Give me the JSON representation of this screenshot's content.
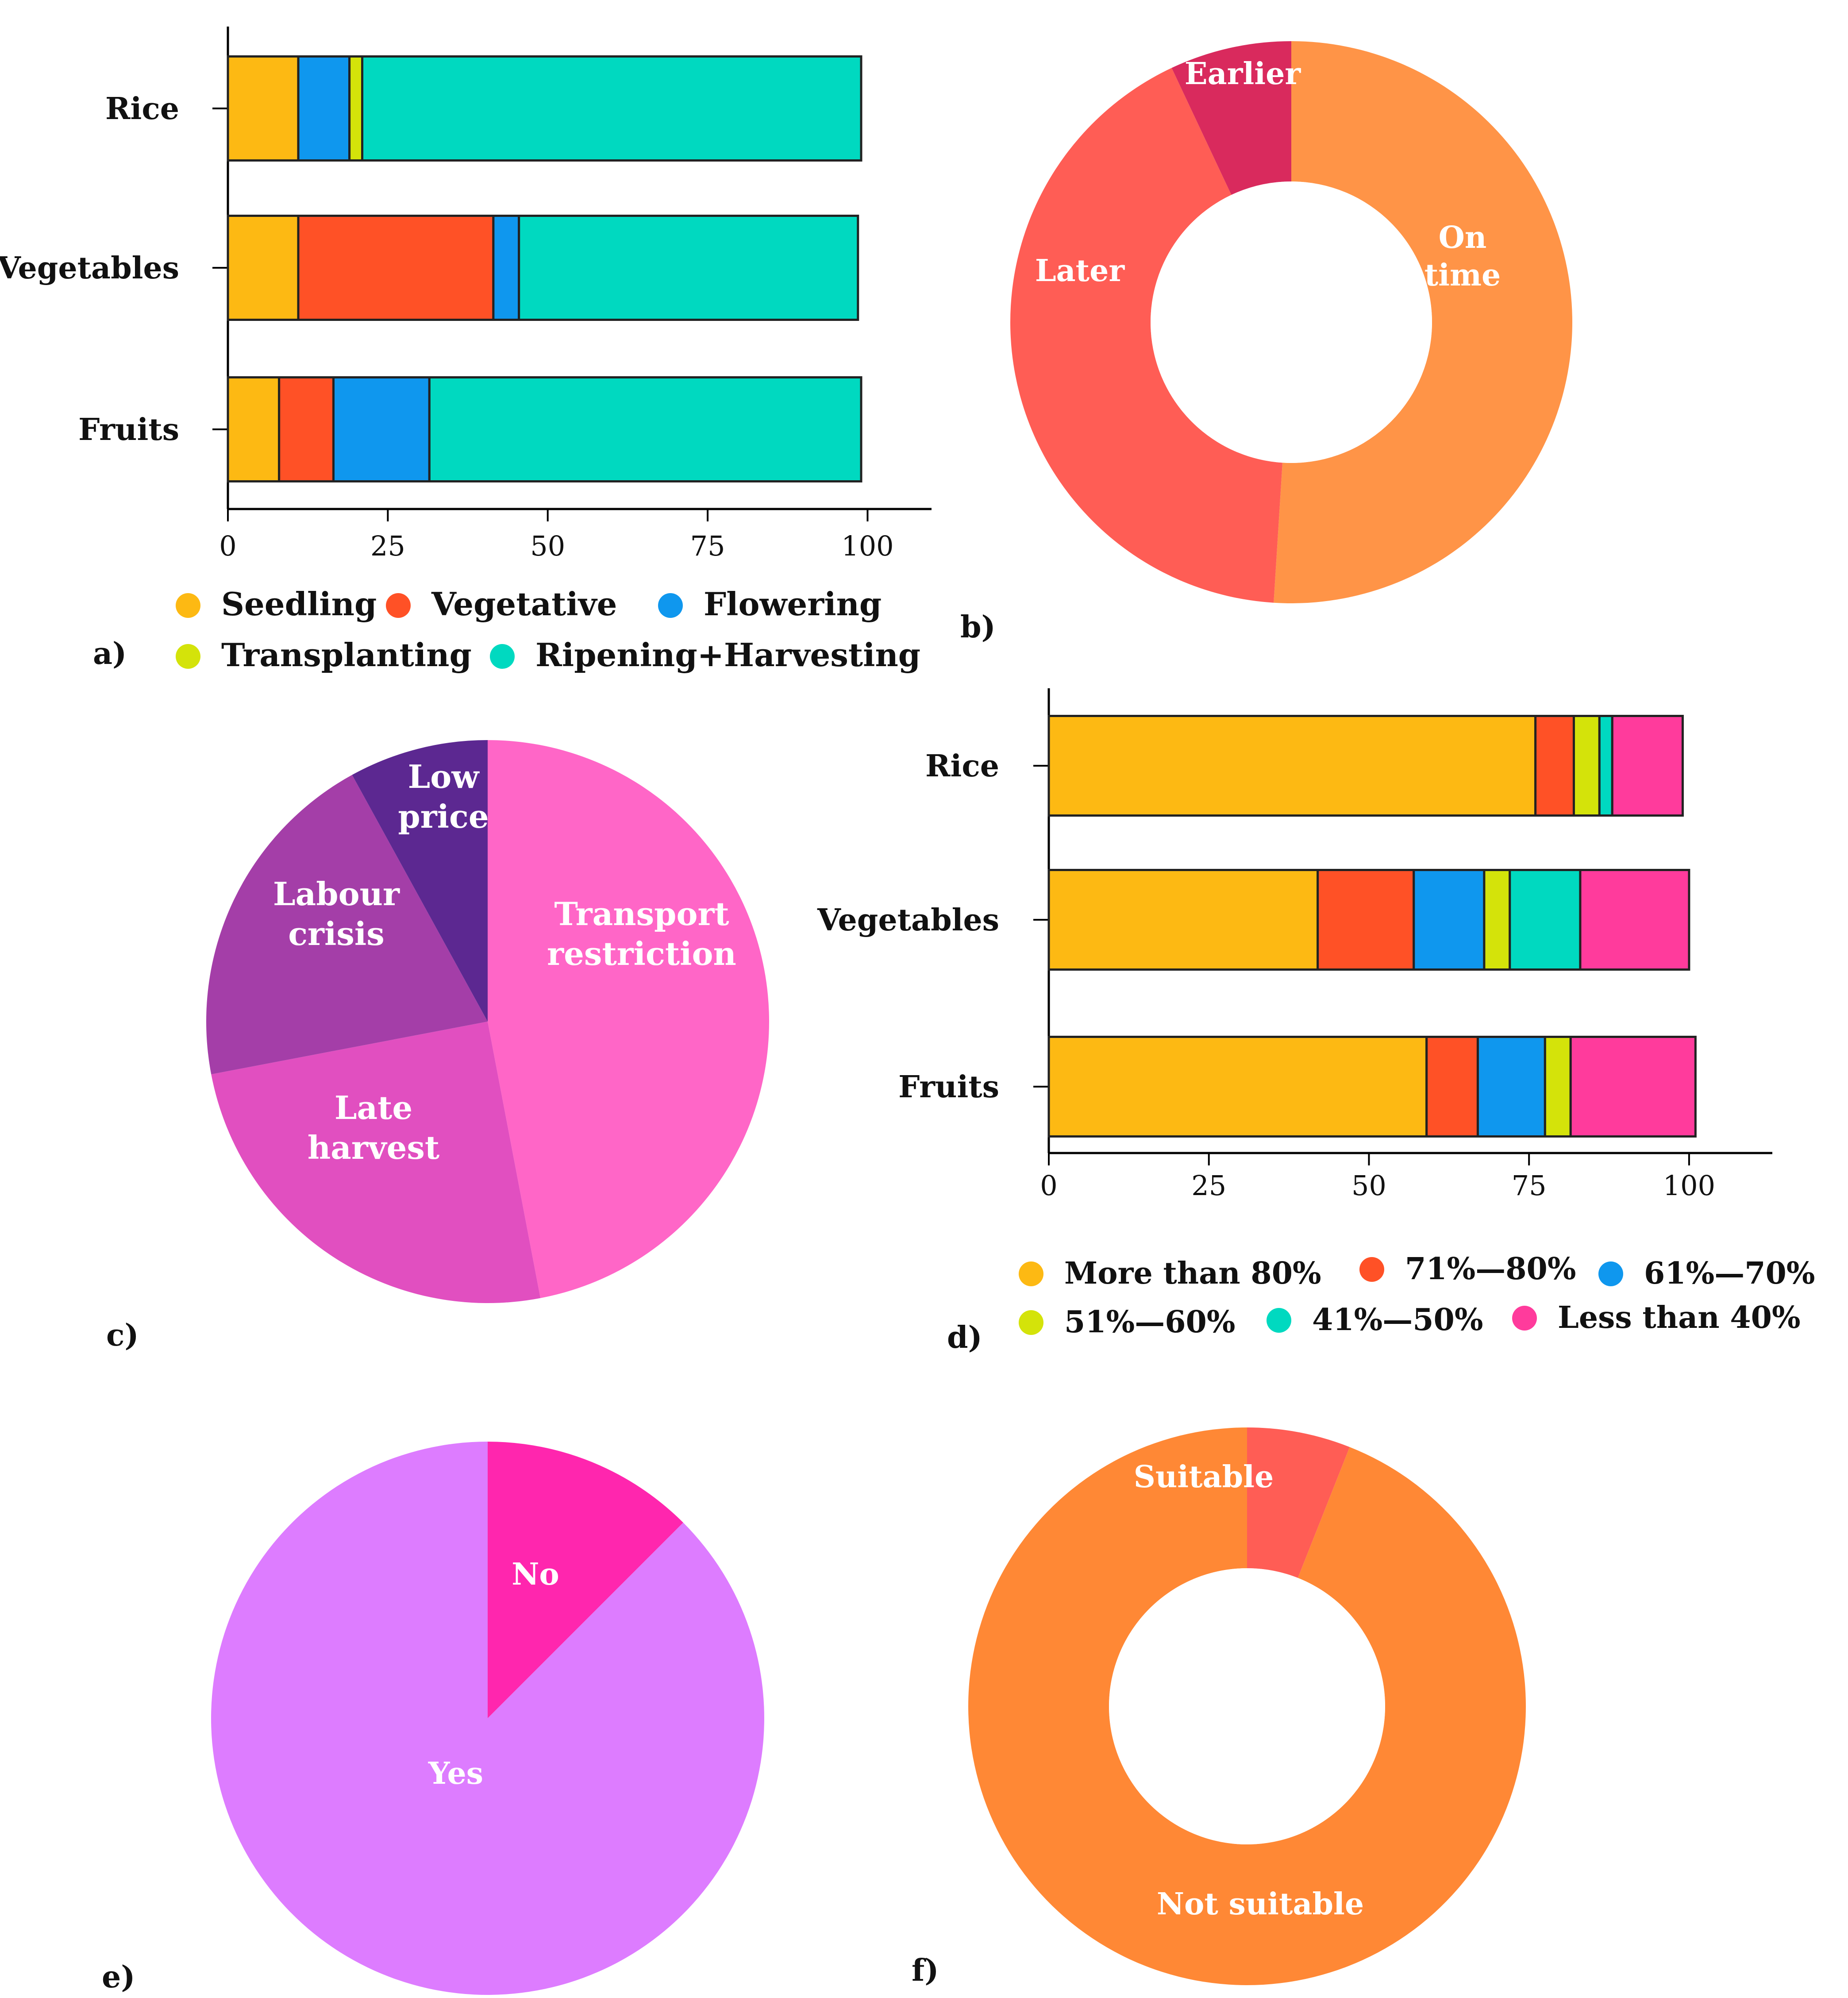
{
  "chart_data": [
    {
      "id": "a",
      "panel_label": "a)",
      "type": "bar",
      "orientation": "horizontal",
      "stacked": true,
      "categories": [
        "Rice",
        "Vegetables",
        "Fruits"
      ],
      "series": [
        {
          "name": "Seedling",
          "color": "#FDB913",
          "values": [
            11,
            11,
            8
          ]
        },
        {
          "name": "Vegetative",
          "color": "#FF5126",
          "values": [
            0,
            30.5,
            8.5
          ]
        },
        {
          "name": "Flowering",
          "color": "#0F97EE",
          "values": [
            8,
            4,
            15
          ]
        },
        {
          "name": "Transplanting",
          "color": "#D4E30A",
          "values": [
            2,
            0,
            0
          ]
        },
        {
          "name": "Ripening+Harvesting",
          "color": "#00D9C0",
          "values": [
            78,
            53,
            67.5
          ]
        }
      ],
      "xticks": [
        "0",
        "25",
        "50",
        "75",
        "100"
      ],
      "xlim": [
        0,
        110
      ],
      "legend_position": "bottom"
    },
    {
      "id": "b",
      "panel_label": "b)",
      "type": "pie",
      "donut": true,
      "labels": [
        "On time",
        "Later",
        "Earlier"
      ],
      "label_lines": [
        [
          "On",
          "time"
        ],
        [
          "Later"
        ],
        [
          "Earlier"
        ]
      ],
      "values": [
        51,
        42,
        7
      ],
      "colors": [
        "#FF9447",
        "#FF5D55",
        "#D92A5D"
      ]
    },
    {
      "id": "c",
      "panel_label": "c)",
      "type": "pie",
      "labels": [
        "Transport restriction",
        "Late harvest",
        "Labour crisis",
        "Low price"
      ],
      "label_lines": [
        [
          "Transport",
          "restriction"
        ],
        [
          "Late",
          "harvest"
        ],
        [
          "Labour",
          "crisis"
        ],
        [
          "Low",
          "price"
        ]
      ],
      "values": [
        47,
        25,
        20,
        8
      ],
      "colors": [
        "#FF66C7",
        "#E14FC0",
        "#A43EA8",
        "#5C2891"
      ]
    },
    {
      "id": "d",
      "panel_label": "d)",
      "type": "bar",
      "orientation": "horizontal",
      "stacked": true,
      "categories": [
        "Rice",
        "Vegetables",
        "Fruits"
      ],
      "series": [
        {
          "name": "More than 80%",
          "color": "#FDB913",
          "values": [
            76,
            42,
            59
          ]
        },
        {
          "name": "71%—80%",
          "color": "#FF5126",
          "values": [
            6,
            15,
            8
          ]
        },
        {
          "name": "61%—70%",
          "color": "#0F97EE",
          "values": [
            0,
            11,
            10.5
          ]
        },
        {
          "name": "51%—60%",
          "color": "#D4E30A",
          "values": [
            4,
            4,
            4
          ]
        },
        {
          "name": "41%—50%",
          "color": "#00D9C0",
          "values": [
            2,
            11,
            0
          ]
        },
        {
          "name": "Less than 40%",
          "color": "#FF3B9C",
          "values": [
            11,
            17,
            19.5
          ]
        }
      ],
      "xticks": [
        "0",
        "25",
        "50",
        "75",
        "100"
      ],
      "xlim": [
        0,
        113
      ],
      "legend_position": "bottom"
    },
    {
      "id": "e",
      "panel_label": "e)",
      "type": "pie",
      "labels": [
        "No",
        "Yes"
      ],
      "values": [
        12.5,
        87.5
      ],
      "colors": [
        "#FF26AE",
        "#DD7CFF"
      ]
    },
    {
      "id": "f",
      "panel_label": "f)",
      "type": "pie",
      "donut": true,
      "labels": [
        "Suitable",
        "Not suitable"
      ],
      "values": [
        6,
        94
      ],
      "colors": [
        "#FF5D55",
        "#FF8835"
      ]
    }
  ]
}
